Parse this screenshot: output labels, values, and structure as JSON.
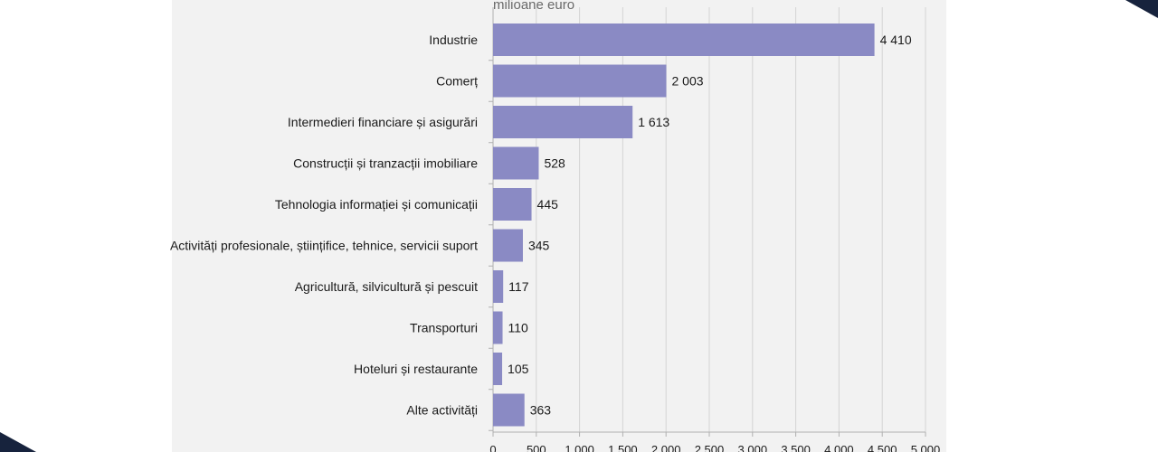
{
  "colors": {
    "bar": "#8a8ac4",
    "panel": "#f2f2f2",
    "gridline": "#d4d4d4",
    "corner": "#17233d"
  },
  "chart_data": {
    "type": "bar",
    "orientation": "horizontal",
    "unit_label": "milioane euro",
    "categories": [
      "Industrie",
      "Comerț",
      "Intermedieri financiare și asigurări",
      "Construcții și tranzacții imobiliare",
      "Tehnologia informației și comunicații",
      "Activități profesionale, științifice, tehnice, servicii suport",
      "Agricultură, silvicultură și pescuit",
      "Transporturi",
      "Hoteluri și restaurante",
      "Alte activități"
    ],
    "values": [
      4410,
      2003,
      1613,
      528,
      445,
      345,
      117,
      110,
      105,
      363
    ],
    "value_labels": [
      "4 410",
      "2 003",
      "1 613",
      "528",
      "445",
      "345",
      "117",
      "110",
      "105",
      "363"
    ],
    "xlim": [
      0,
      5000
    ],
    "xticks": [
      0,
      500,
      1000,
      1500,
      2000,
      2500,
      3000,
      3500,
      4000,
      4500,
      5000
    ],
    "xtick_labels": [
      "0",
      "500",
      "1 000",
      "1 500",
      "2 000",
      "2 500",
      "3 000",
      "3 500",
      "4 000",
      "4 500",
      "5 000"
    ],
    "grid": "vertical"
  }
}
